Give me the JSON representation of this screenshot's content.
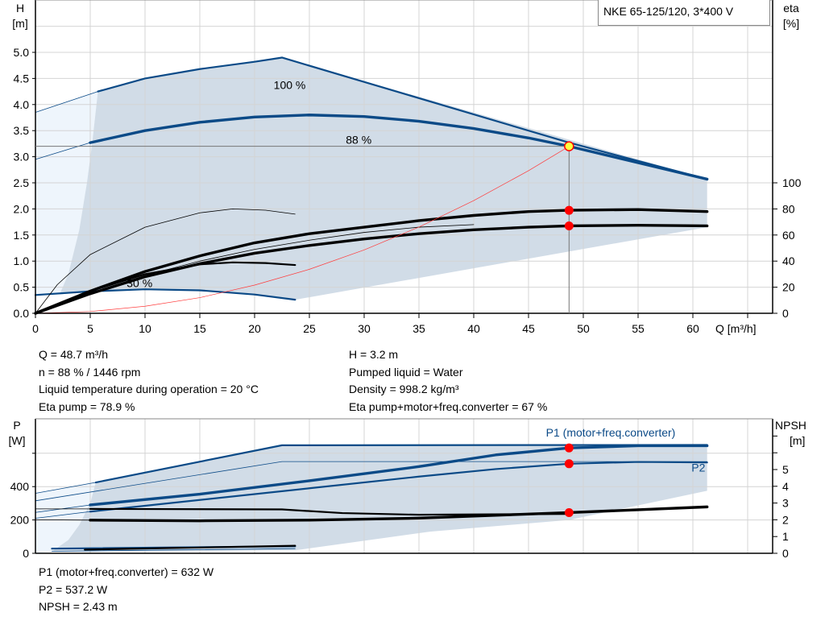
{
  "title": "NKE 65-125/120, 3*400 V",
  "colors": {
    "curve_blue": "#0b4a87",
    "envelope": "#d1dce7",
    "envelope_light": "#eef5fc",
    "system_curve": "#ff3b3b",
    "duty_point": "#ff0000",
    "duty_point_fill": "#ffff40",
    "grid": "#d4d4d4"
  },
  "info_top": {
    "left": [
      "Q = 48.7 m³/h",
      "n = 88 % / 1446 rpm",
      "Liquid temperature during operation = 20 °C",
      "Eta pump = 78.9 %"
    ],
    "right": [
      "H = 3.2 m",
      "Pumped liquid = Water",
      "Density = 998.2 kg/m³",
      "Eta pump+motor+freq.converter = 67 %"
    ]
  },
  "info_bottom": [
    "P1 (motor+freq.converter) = 632 W",
    "P2 = 537.2 W",
    "NPSH = 2.43 m"
  ],
  "chart_data": [
    {
      "type": "line",
      "xlabel": "Q [m³/h]",
      "ylabel_left": [
        "H",
        "[m]"
      ],
      "ylabel_right": [
        "eta",
        "[%]"
      ],
      "xlim": [
        0,
        67.3
      ],
      "ylim_left": [
        0,
        6
      ],
      "ylim_right": [
        0,
        148
      ],
      "grid": true,
      "x_ticks": [
        "0",
        "5",
        "10",
        "15",
        "20",
        "25",
        "30",
        "35",
        "40",
        "45",
        "50",
        "55",
        "60"
      ],
      "y_left_ticks": [
        "0.0",
        "0.5",
        "1.0",
        "1.5",
        "2.0",
        "2.5",
        "3.0",
        "3.5",
        "4.0",
        "4.5",
        "5.0"
      ],
      "y_right_ticks": [
        "0",
        "20",
        "40",
        "60",
        "80",
        "100"
      ],
      "curve_labels": [
        {
          "text": "100 %",
          "q": 23.2,
          "h": 4.3
        },
        {
          "text": "88 %",
          "q": 29.5,
          "h": 3.25
        },
        {
          "text": "30 %",
          "q": 9.5,
          "h": 0.5
        }
      ],
      "envelope_light": [
        [
          0,
          0.35
        ],
        [
          0,
          3.85
        ],
        [
          5.7,
          4.25
        ],
        [
          5.2,
          3.3
        ],
        [
          4.7,
          2.5
        ],
        [
          4,
          1.6
        ],
        [
          3,
          0.75
        ],
        [
          2.2,
          0.36
        ]
      ],
      "envelope": [
        [
          5.7,
          4.25
        ],
        [
          10,
          4.5
        ],
        [
          15,
          4.68
        ],
        [
          20,
          4.82
        ],
        [
          22.5,
          4.9
        ],
        [
          61.3,
          2.57
        ],
        [
          61.3,
          1.65
        ],
        [
          23.7,
          0.26
        ],
        [
          20,
          0.36
        ],
        [
          15,
          0.44
        ],
        [
          10,
          0.46
        ],
        [
          5,
          0.42
        ],
        [
          2.2,
          0.36
        ],
        [
          3,
          0.75
        ],
        [
          4,
          1.6
        ],
        [
          4.7,
          2.5
        ],
        [
          5.2,
          3.3
        ]
      ],
      "series": [
        {
          "name": "100 %",
          "axis": "H",
          "color": "#0b4a87",
          "weight": "thin",
          "points": [
            [
              0,
              3.85
            ],
            [
              5.7,
              4.25
            ]
          ]
        },
        {
          "name": "100 %",
          "axis": "H",
          "color": "#0b4a87",
          "weight": "medium",
          "points": [
            [
              5.7,
              4.25
            ],
            [
              10,
              4.5
            ],
            [
              15,
              4.68
            ],
            [
              20,
              4.82
            ],
            [
              22.5,
              4.9
            ]
          ]
        },
        {
          "axis": "H",
          "color": "#0b4a87",
          "weight": "medium",
          "points": [
            [
              22.5,
              4.9
            ],
            [
              48.7,
              3.27
            ],
            [
              61.3,
              2.57
            ]
          ]
        },
        {
          "name": "88 %",
          "axis": "H",
          "color": "#0b4a87",
          "weight": "thin",
          "points": [
            [
              0,
              2.95
            ],
            [
              5,
              3.27
            ]
          ]
        },
        {
          "name": "88 %",
          "axis": "H",
          "color": "#0b4a87",
          "weight": "thick",
          "points": [
            [
              5,
              3.27
            ],
            [
              10,
              3.5
            ],
            [
              15,
              3.66
            ],
            [
              20,
              3.76
            ],
            [
              25,
              3.8
            ],
            [
              30,
              3.77
            ],
            [
              35,
              3.68
            ],
            [
              40,
              3.54
            ],
            [
              45,
              3.36
            ],
            [
              48.7,
              3.2
            ],
            [
              61.3,
              2.57
            ]
          ]
        },
        {
          "name": "30 %",
          "axis": "H",
          "color": "#0b4a87",
          "weight": "medium",
          "points": [
            [
              0,
              0.35
            ],
            [
              5,
              0.42
            ],
            [
              10,
              0.46
            ],
            [
              15,
              0.44
            ],
            [
              20,
              0.36
            ],
            [
              23.7,
              0.26
            ]
          ]
        },
        {
          "axis": "eta",
          "color": "#000000",
          "weight": "thin",
          "points": [
            [
              0,
              0
            ],
            [
              2,
              22
            ],
            [
              5,
              45
            ],
            [
              10,
              66
            ],
            [
              15,
              77
            ],
            [
              18,
              80
            ],
            [
              21,
              79
            ],
            [
              23.7,
              76
            ]
          ]
        },
        {
          "axis": "eta",
          "color": "#000000",
          "weight": "medium",
          "points": [
            [
              0,
              0
            ],
            [
              5,
              17
            ],
            [
              10,
              30
            ],
            [
              15,
              37.5
            ],
            [
              18,
              39
            ],
            [
              21,
              38.5
            ],
            [
              23.7,
              37
            ]
          ]
        },
        {
          "axis": "eta",
          "color": "#000000",
          "weight": "thin",
          "points": [
            [
              0,
              0
            ],
            [
              5,
              15
            ],
            [
              10,
              29
            ],
            [
              15,
              40
            ],
            [
              20,
              49
            ],
            [
              25,
              56
            ],
            [
              30,
              62
            ],
            [
              35,
              66
            ],
            [
              40,
              68
            ]
          ]
        },
        {
          "axis": "eta",
          "color": "#000000",
          "weight": "thick",
          "points": [
            [
              0,
              0
            ],
            [
              5,
              17
            ],
            [
              10,
              32
            ],
            [
              15,
              44
            ],
            [
              20,
              54
            ],
            [
              25,
              61
            ],
            [
              30,
              66
            ],
            [
              35,
              71
            ],
            [
              40,
              75
            ],
            [
              45,
              78
            ],
            [
              48.7,
              79
            ],
            [
              55,
              79.5
            ],
            [
              61.3,
              78
            ]
          ]
        },
        {
          "axis": "eta",
          "color": "#000000",
          "weight": "thick",
          "points": [
            [
              0,
              0
            ],
            [
              5,
              15
            ],
            [
              10,
              28
            ],
            [
              15,
              38
            ],
            [
              20,
              46
            ],
            [
              25,
              52
            ],
            [
              30,
              57
            ],
            [
              35,
              61
            ],
            [
              40,
              64
            ],
            [
              45,
              66
            ],
            [
              48.7,
              67
            ],
            [
              55,
              67.5
            ],
            [
              61.3,
              67
            ]
          ]
        },
        {
          "axis": "H",
          "color": "#ff3b3b",
          "weight": "hair",
          "points": [
            [
              0,
              0
            ],
            [
              5,
              0.034
            ],
            [
              10,
              0.135
            ],
            [
              15,
              0.3
            ],
            [
              20,
              0.54
            ],
            [
              25,
              0.843
            ],
            [
              30,
              1.214
            ],
            [
              35,
              1.653
            ],
            [
              40,
              2.159
            ],
            [
              45,
              2.732
            ],
            [
              48.7,
              3.2
            ]
          ]
        }
      ],
      "duty_point": {
        "q": 48.7,
        "h": 3.2,
        "eta_pump": 78.9,
        "eta_total": 67
      }
    },
    {
      "type": "line",
      "ylabel_left": [
        "P",
        "[W]"
      ],
      "ylabel_right": [
        "NPSH",
        "[m]"
      ],
      "xlim": [
        0,
        67.3
      ],
      "ylim_left": [
        0,
        806
      ],
      "ylim_right": [
        0,
        8
      ],
      "grid": true,
      "y_left_ticks": [
        "0",
        "200",
        "400"
      ],
      "y_right_ticks": [
        "0",
        "1",
        "2",
        "3",
        "4",
        "5"
      ],
      "curve_labels": [
        {
          "text": "P1 (motor+freq.converter)",
          "q": 52.5,
          "p": 700
        },
        {
          "text": "P2",
          "q": 60.5,
          "p": 490
        }
      ],
      "envelope_light": [
        [
          0,
          0
        ],
        [
          0,
          360
        ],
        [
          5.5,
          425
        ],
        [
          5,
          300
        ],
        [
          4,
          170
        ],
        [
          3,
          80
        ],
        [
          1.5,
          10
        ]
      ],
      "envelope": [
        [
          5.5,
          425
        ],
        [
          22.5,
          648
        ],
        [
          61.3,
          650
        ],
        [
          61.3,
          375
        ],
        [
          48.7,
          200
        ],
        [
          36,
          130
        ],
        [
          23.7,
          18
        ],
        [
          1.5,
          10
        ],
        [
          3,
          80
        ],
        [
          4,
          170
        ],
        [
          5,
          300
        ]
      ],
      "series": [
        {
          "axis": "P",
          "color": "#0b4a87",
          "weight": "thin",
          "points": [
            [
              0,
              360
            ],
            [
              5.5,
              425
            ]
          ]
        },
        {
          "axis": "P",
          "color": "#0b4a87",
          "weight": "medium",
          "points": [
            [
              5.5,
              425
            ],
            [
              22.5,
              648
            ],
            [
              61.3,
              650
            ]
          ]
        },
        {
          "axis": "P",
          "color": "#0b4a87",
          "weight": "thin",
          "points": [
            [
              0,
              315
            ],
            [
              22.5,
              550
            ],
            [
              61.3,
              550
            ]
          ]
        },
        {
          "name": "P1 (motor+freq.converter)",
          "axis": "P",
          "color": "#0b4a87",
          "weight": "thin",
          "points": [
            [
              0,
              245
            ],
            [
              5,
              290
            ]
          ]
        },
        {
          "name": "P1 (motor+freq.converter)",
          "axis": "P",
          "color": "#0b4a87",
          "weight": "thick",
          "points": [
            [
              5,
              290
            ],
            [
              15,
              355
            ],
            [
              25,
              435
            ],
            [
              35,
              520
            ],
            [
              42,
              590
            ],
            [
              48.7,
              632
            ],
            [
              55,
              645
            ],
            [
              61.3,
              645
            ]
          ]
        },
        {
          "name": "P2",
          "axis": "P",
          "color": "#0b4a87",
          "weight": "thin",
          "points": [
            [
              0,
              210
            ],
            [
              5,
              250
            ]
          ]
        },
        {
          "name": "P2",
          "axis": "P",
          "color": "#0b4a87",
          "weight": "medium",
          "points": [
            [
              5,
              250
            ],
            [
              15,
              320
            ],
            [
              25,
              390
            ],
            [
              35,
              460
            ],
            [
              42,
              505
            ],
            [
              48.7,
              537.2
            ],
            [
              55,
              548
            ],
            [
              61.3,
              545
            ]
          ]
        },
        {
          "axis": "P",
          "color": "#0b4a87",
          "weight": "medium",
          "points": [
            [
              1.5,
              28
            ],
            [
              23.7,
              42
            ]
          ]
        },
        {
          "axis": "P",
          "color": "#0b4a87",
          "weight": "thin",
          "points": [
            [
              1.5,
              12
            ],
            [
              23.7,
              28
            ]
          ]
        },
        {
          "axis": "NPSH",
          "color": "#000000",
          "weight": "thin",
          "points": [
            [
              0,
              2.65
            ],
            [
              5,
              2.65
            ]
          ]
        },
        {
          "axis": "NPSH",
          "color": "#000000",
          "weight": "medium",
          "points": [
            [
              5,
              2.65
            ],
            [
              22.5,
              2.62
            ],
            [
              28,
              2.4
            ],
            [
              35,
              2.3
            ],
            [
              48.7,
              2.35
            ]
          ]
        },
        {
          "axis": "NPSH",
          "color": "#000000",
          "weight": "thin",
          "points": [
            [
              0,
              2.0
            ],
            [
              5,
              1.98
            ]
          ]
        },
        {
          "axis": "NPSH",
          "color": "#000000",
          "weight": "thick",
          "points": [
            [
              5,
              1.98
            ],
            [
              15,
              1.94
            ],
            [
              25,
              1.98
            ],
            [
              35,
              2.1
            ],
            [
              48.7,
              2.43
            ],
            [
              61.3,
              2.77
            ]
          ]
        },
        {
          "axis": "NPSH",
          "color": "#000000",
          "weight": "medium",
          "points": [
            [
              4.5,
              0.22
            ],
            [
              23.7,
              0.45
            ]
          ]
        }
      ],
      "duty_point": {
        "q": 48.7,
        "p1": 632,
        "p2": 537.2,
        "npsh": 2.43
      }
    }
  ]
}
